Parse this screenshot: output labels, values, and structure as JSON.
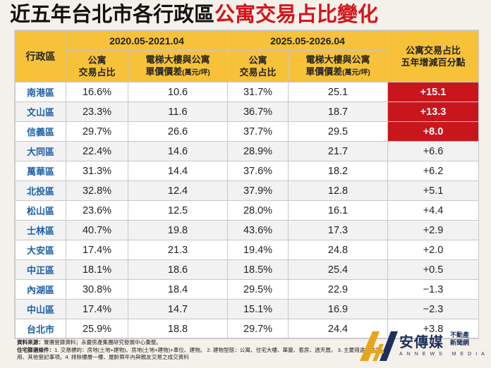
{
  "title": {
    "part1": "近五年台北市各行政區",
    "part2": "公寓交易占比變化"
  },
  "header": {
    "district": "行政區",
    "period1": "2020.05-2021.04",
    "period2": "2025.05-2026.04",
    "share_l1": "公寓",
    "share_l2": "交易占比",
    "diff_l1": "電梯大樓與公寓",
    "diff_l2": "單價價差",
    "diff_unit": "(萬元/坪)",
    "change_l1": "公寓交易占比",
    "change_l2": "五年增減百分點"
  },
  "rows": [
    {
      "district": "南港區",
      "share1": "16.6%",
      "diff1": "10.6",
      "share2": "31.7%",
      "diff2": "25.1",
      "change": "+15.1",
      "hl": true
    },
    {
      "district": "文山區",
      "share1": "23.3%",
      "diff1": "11.6",
      "share2": "36.7%",
      "diff2": "18.7",
      "change": "+13.3",
      "hl": true
    },
    {
      "district": "信義區",
      "share1": "29.7%",
      "diff1": "26.6",
      "share2": "37.7%",
      "diff2": "29.5",
      "change": "+8.0",
      "hl": true
    },
    {
      "district": "大同區",
      "share1": "22.4%",
      "diff1": "14.6",
      "share2": "28.9%",
      "diff2": "21.7",
      "change": "+6.6",
      "hl": false
    },
    {
      "district": "萬華區",
      "share1": "31.3%",
      "diff1": "14.4",
      "share2": "37.6%",
      "diff2": "18.2",
      "change": "+6.2",
      "hl": false
    },
    {
      "district": "北投區",
      "share1": "32.8%",
      "diff1": "12.4",
      "share2": "37.9%",
      "diff2": "12.8",
      "change": "+5.1",
      "hl": false
    },
    {
      "district": "松山區",
      "share1": "23.6%",
      "diff1": "12.5",
      "share2": "28.0%",
      "diff2": "16.1",
      "change": "+4.4",
      "hl": false
    },
    {
      "district": "士林區",
      "share1": "40.7%",
      "diff1": "19.8",
      "share2": "43.6%",
      "diff2": "17.3",
      "change": "+2.9",
      "hl": false
    },
    {
      "district": "大安區",
      "share1": "17.4%",
      "diff1": "21.3",
      "share2": "19.4%",
      "diff2": "24.8",
      "change": "+2.0",
      "hl": false
    },
    {
      "district": "中正區",
      "share1": "18.1%",
      "diff1": "18.6",
      "share2": "18.5%",
      "diff2": "25.4",
      "change": "+0.5",
      "hl": false
    },
    {
      "district": "內湖區",
      "share1": "30.8%",
      "diff1": "18.4",
      "share2": "29.5%",
      "diff2": "22.9",
      "change": "−1.3",
      "hl": false
    },
    {
      "district": "中山區",
      "share1": "17.4%",
      "diff1": "14.7",
      "share2": "15.1%",
      "diff2": "16.9",
      "change": "−2.3",
      "hl": false
    },
    {
      "district": "台北市",
      "share1": "25.9%",
      "diff1": "18.8",
      "share2": "29.7%",
      "diff2": "24.4",
      "change": "+3.8",
      "hl": false
    }
  ],
  "footer": {
    "source_label": "資料來源：",
    "source_text": "實價登錄資料；永慶房產集團研究發展中心彙整。",
    "criteria_label": "住宅篩選條件：",
    "criteria_text1": "1. 交易標的：房地(土地+建物)、房地(土地+建物)+車位、建物。 2. 建物型態：公寓、住宅大樓、華廈、套房、透天厝。 3. 主要用途：住家",
    "criteria_text2": "用、其他登記事項。4. 排除樓層一樓、屋齡兩年內與親友交易之成交資料"
  },
  "logo": {
    "brand": "安傳媒",
    "side1": "不動產",
    "side2": "新聞網",
    "sub": "ANNEWS MEDIA",
    "colors": {
      "gold": "#e8a41c",
      "navy": "#1d2f5c"
    }
  },
  "colors": {
    "header_bg": "#f7c23a",
    "highlight": "#c9161d",
    "title_red": "#d3141b",
    "district_blue": "#1d5fa6"
  }
}
